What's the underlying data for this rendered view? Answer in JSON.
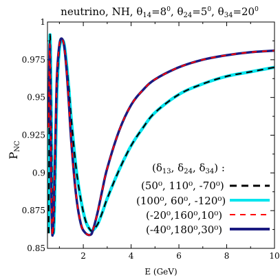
{
  "chart_data": {
    "type": "line",
    "title": {
      "prefix": "neutrino, NH, ",
      "theta14_label": "θ",
      "theta14_sub": "14",
      "theta14_val": "=8",
      "theta24_label": "θ",
      "theta24_sub": "24",
      "theta24_val": "=5",
      "theta34_label": "θ",
      "theta34_sub": "34",
      "theta34_val": "=20",
      "deg": "0",
      "sep": ", "
    },
    "xlabel": "E (GeV)",
    "ylabel": {
      "main": "P",
      "sub": "NC"
    },
    "xlim": [
      0.5,
      10
    ],
    "ylim": [
      0.85,
      1.0
    ],
    "x_ticks": [
      2,
      4,
      6,
      8,
      10
    ],
    "x_tick_labels": [
      "2",
      "4",
      "6",
      "8",
      "10"
    ],
    "y_ticks": [
      0.85,
      0.875,
      0.9,
      0.925,
      0.95,
      0.975,
      1.0
    ],
    "y_tick_labels": [
      "0.85",
      "0.875",
      "0.9",
      "0.925",
      "0.95",
      "0.975",
      "1"
    ],
    "legend_header": {
      "open": "(",
      "d13": "δ",
      "d13_sub": "13",
      "d24": "δ",
      "d24_sub": "24",
      "d34": "δ",
      "d34_sub": "34",
      "close": ") :"
    },
    "legend_placement": "center-right",
    "series": [
      {
        "name": "(50⁰, 110⁰, -70⁰)",
        "color": "#000000",
        "style": "dashed-black",
        "x": [
          0.55,
          0.6,
          0.65,
          0.7,
          0.75,
          0.8,
          0.85,
          0.9,
          1.0,
          1.1,
          1.2,
          1.3,
          1.4,
          1.5,
          1.7,
          1.9,
          2.1,
          2.3,
          2.4,
          2.6,
          2.8,
          3.0,
          3.5,
          4.0,
          4.5,
          5.0,
          6.0,
          7.0,
          8.0,
          9.0,
          10.0
        ],
        "y": [
          0.86,
          0.988,
          0.95,
          0.88,
          0.86,
          0.88,
          0.92,
          0.955,
          0.982,
          0.988,
          0.985,
          0.972,
          0.955,
          0.935,
          0.903,
          0.882,
          0.868,
          0.862,
          0.862,
          0.866,
          0.874,
          0.883,
          0.902,
          0.918,
          0.93,
          0.94,
          0.952,
          0.959,
          0.964,
          0.967,
          0.97
        ]
      },
      {
        "name": "(100⁰, 60⁰, -120⁰)",
        "color": "#00e5ee",
        "style": "solid-cyan",
        "x": [
          0.55,
          0.6,
          0.65,
          0.7,
          0.75,
          0.8,
          0.85,
          0.9,
          1.0,
          1.1,
          1.2,
          1.3,
          1.4,
          1.5,
          1.7,
          1.9,
          2.1,
          2.3,
          2.4,
          2.6,
          2.8,
          3.0,
          3.5,
          4.0,
          4.5,
          5.0,
          6.0,
          7.0,
          8.0,
          9.0,
          10.0
        ],
        "y": [
          0.86,
          0.988,
          0.95,
          0.88,
          0.86,
          0.88,
          0.92,
          0.955,
          0.982,
          0.988,
          0.985,
          0.972,
          0.955,
          0.935,
          0.903,
          0.882,
          0.868,
          0.862,
          0.862,
          0.866,
          0.874,
          0.883,
          0.902,
          0.918,
          0.93,
          0.94,
          0.952,
          0.959,
          0.964,
          0.967,
          0.97
        ]
      },
      {
        "name": "(-20⁰,160⁰,10⁰)",
        "color": "#ff0000",
        "style": "dashed-red",
        "x": [
          0.55,
          0.6,
          0.65,
          0.7,
          0.75,
          0.8,
          0.85,
          0.9,
          1.0,
          1.1,
          1.2,
          1.3,
          1.4,
          1.5,
          1.7,
          1.9,
          2.1,
          2.3,
          2.4,
          2.6,
          2.8,
          3.0,
          3.5,
          4.0,
          4.5,
          5.0,
          6.0,
          7.0,
          8.0,
          9.0,
          10.0
        ],
        "y": [
          0.93,
          0.985,
          0.9,
          0.86,
          0.87,
          0.9,
          0.935,
          0.965,
          0.985,
          0.989,
          0.984,
          0.968,
          0.945,
          0.92,
          0.885,
          0.866,
          0.86,
          0.859,
          0.862,
          0.874,
          0.889,
          0.903,
          0.928,
          0.945,
          0.955,
          0.962,
          0.97,
          0.975,
          0.978,
          0.98,
          0.981
        ]
      },
      {
        "name": "(-40⁰,180⁰,30⁰)",
        "color": "#1a1a80",
        "style": "solid-navy",
        "x": [
          0.55,
          0.6,
          0.65,
          0.7,
          0.75,
          0.8,
          0.85,
          0.9,
          1.0,
          1.1,
          1.2,
          1.3,
          1.4,
          1.5,
          1.7,
          1.9,
          2.1,
          2.3,
          2.4,
          2.6,
          2.8,
          3.0,
          3.5,
          4.0,
          4.5,
          5.0,
          6.0,
          7.0,
          8.0,
          9.0,
          10.0
        ],
        "y": [
          0.93,
          0.985,
          0.9,
          0.86,
          0.87,
          0.9,
          0.935,
          0.965,
          0.985,
          0.989,
          0.984,
          0.968,
          0.945,
          0.92,
          0.885,
          0.866,
          0.86,
          0.859,
          0.862,
          0.874,
          0.889,
          0.903,
          0.928,
          0.945,
          0.955,
          0.962,
          0.97,
          0.975,
          0.978,
          0.98,
          0.981
        ]
      }
    ]
  }
}
